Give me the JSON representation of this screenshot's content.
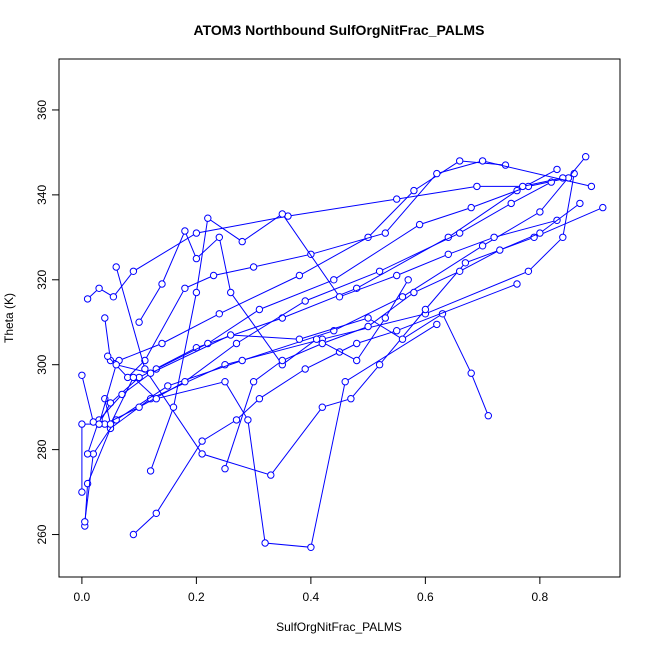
{
  "chart_data": {
    "type": "line",
    "title": "ATOM3 Northbound SulfOrgNitFrac_PALMS",
    "xlabel": "SulfOrgNitFrac_PALMS",
    "ylabel": "Theta (K)",
    "xlim": [
      -0.04,
      0.94
    ],
    "ylim": [
      250,
      372
    ],
    "xticks": [
      0.0,
      0.2,
      0.4,
      0.6,
      0.8
    ],
    "xtick_labels": [
      "0.0",
      "0.2",
      "0.4",
      "0.6",
      "0.8"
    ],
    "yticks": [
      260,
      280,
      300,
      320,
      340,
      360
    ],
    "ytick_labels": [
      "260",
      "280",
      "300",
      "320",
      "340",
      "360"
    ],
    "grid": false,
    "legend": "none",
    "series_color": "#0000ff",
    "marker": "open-circle",
    "series": [
      {
        "x": [
          0.005,
          0.01,
          0.05,
          0.12,
          0.25,
          0.42,
          0.6,
          0.78,
          0.84,
          0.86
        ],
        "y": [
          262,
          272,
          285,
          292,
          300,
          306,
          312,
          322,
          330,
          345
        ]
      },
      {
        "x": [
          0.005,
          0.02,
          0.06,
          0.15,
          0.28,
          0.44,
          0.56,
          0.7,
          0.8,
          0.88
        ],
        "y": [
          263,
          279,
          287,
          295,
          301,
          308,
          316,
          328,
          336,
          349
        ]
      },
      {
        "x": [
          0.0,
          0.0,
          0.03,
          0.05,
          0.1,
          0.2,
          0.35,
          0.48,
          0.64,
          0.76,
          0.83
        ],
        "y": [
          270,
          286,
          286,
          291,
          297,
          304,
          311,
          318,
          330,
          341,
          346
        ]
      },
      {
        "x": [
          0.01,
          0.03,
          0.07,
          0.13,
          0.22,
          0.31,
          0.44,
          0.59,
          0.68,
          0.78,
          0.85
        ],
        "y": [
          279,
          287,
          293,
          299,
          305,
          313,
          320,
          333,
          337,
          342,
          344
        ]
      },
      {
        "x": [
          0.0,
          0.02,
          0.04,
          0.1,
          0.18,
          0.27,
          0.39,
          0.52,
          0.66,
          0.75,
          0.82
        ],
        "y": [
          297.5,
          286.5,
          286,
          290,
          296,
          305,
          315,
          322,
          331,
          338,
          343
        ]
      },
      {
        "x": [
          0.01,
          0.03,
          0.055,
          0.09,
          0.2,
          0.36,
          0.55,
          0.69,
          0.77,
          0.84
        ],
        "y": [
          315.5,
          318,
          316,
          322,
          331,
          335,
          339,
          342,
          342,
          344
        ]
      },
      {
        "x": [
          0.04,
          0.05,
          0.065,
          0.14,
          0.24,
          0.38,
          0.5,
          0.58,
          0.66,
          0.74
        ],
        "y": [
          311,
          301,
          301,
          305,
          312,
          321,
          330,
          341,
          348,
          347
        ]
      },
      {
        "x": [
          0.045,
          0.08,
          0.11,
          0.18,
          0.23,
          0.3,
          0.4,
          0.53,
          0.62,
          0.7,
          0.89
        ],
        "y": [
          302,
          297,
          301,
          318,
          321,
          323,
          326,
          331,
          345,
          348,
          342
        ]
      },
      {
        "x": [
          0.06,
          0.11,
          0.21,
          0.33,
          0.42,
          0.47,
          0.52,
          0.6,
          0.67,
          0.79,
          0.91
        ],
        "y": [
          323,
          299,
          279,
          274,
          290,
          292,
          300,
          313,
          324,
          330,
          337
        ]
      },
      {
        "x": [
          0.04,
          0.05,
          0.09,
          0.13,
          0.25,
          0.29,
          0.32,
          0.4,
          0.46,
          0.62
        ],
        "y": [
          292,
          286,
          297,
          292,
          296,
          287,
          258,
          257,
          296,
          309.5
        ]
      },
      {
        "x": [
          0.03,
          0.06,
          0.12,
          0.26,
          0.38,
          0.5,
          0.56,
          0.63,
          0.68,
          0.71
        ],
        "y": [
          286,
          300,
          298,
          307,
          306,
          311,
          306,
          312,
          298,
          288
        ]
      },
      {
        "x": [
          0.09,
          0.13,
          0.21,
          0.27,
          0.31,
          0.39,
          0.45,
          0.48,
          0.55,
          0.76
        ],
        "y": [
          260,
          265,
          282,
          287,
          292,
          299,
          303,
          305,
          308,
          319
        ]
      },
      {
        "x": [
          0.12,
          0.16,
          0.2,
          0.22,
          0.28,
          0.35,
          0.45,
          0.55,
          0.64,
          0.72,
          0.83
        ],
        "y": [
          275,
          290,
          317,
          334.5,
          329,
          335.5,
          316,
          321,
          326,
          330,
          334
        ]
      },
      {
        "x": [
          0.1,
          0.14,
          0.18,
          0.2,
          0.24,
          0.26,
          0.35,
          0.41,
          0.48,
          0.53,
          0.57
        ],
        "y": [
          310,
          319,
          331.5,
          325,
          330,
          317,
          300,
          306,
          301,
          311,
          320
        ]
      },
      {
        "x": [
          0.25,
          0.3,
          0.35,
          0.42,
          0.5,
          0.58,
          0.66,
          0.73,
          0.8,
          0.87
        ],
        "y": [
          275.5,
          296,
          301,
          305,
          309,
          317,
          322,
          327,
          331,
          338
        ]
      }
    ]
  }
}
